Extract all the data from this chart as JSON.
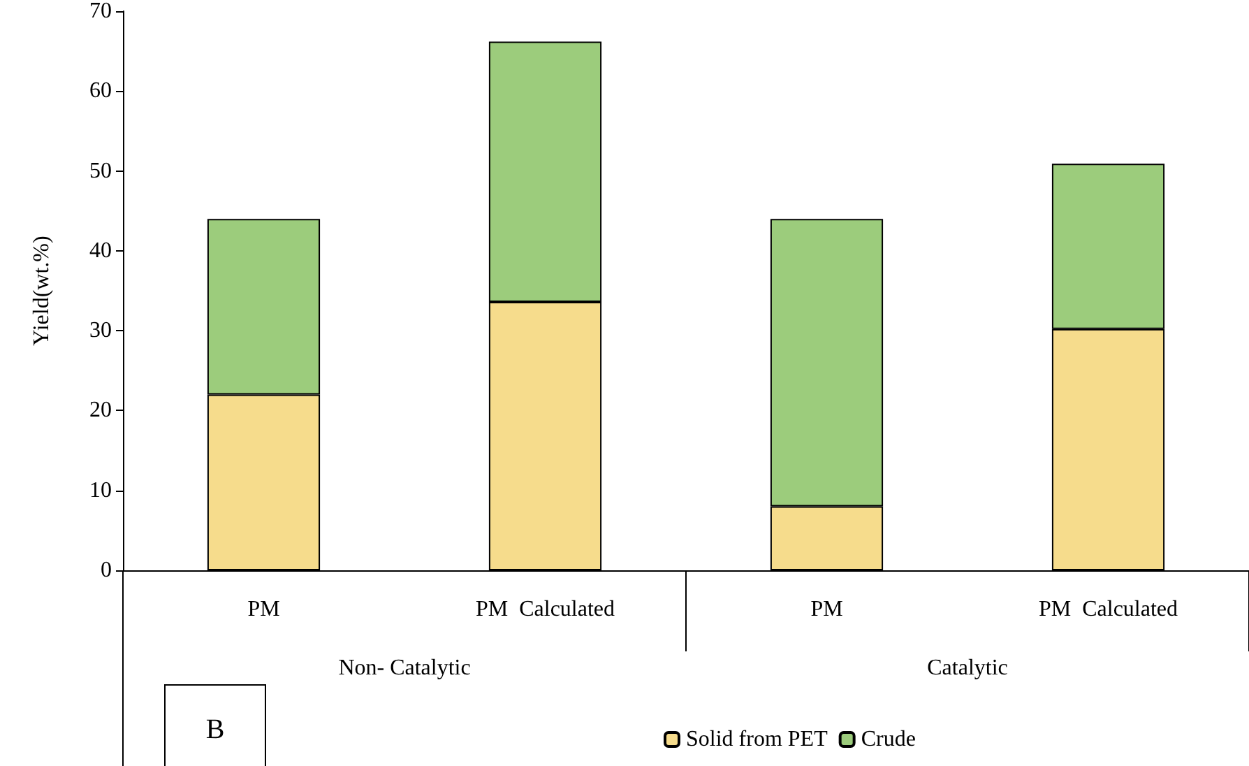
{
  "chart_data": {
    "type": "bar",
    "stacked": true,
    "ylabel": "Yield(wt.%)",
    "categories": [
      "PM",
      "PM  Calculated",
      "PM",
      "PM  Calculated"
    ],
    "series": [
      {
        "name": "Solid from PET",
        "color": "#f6dc8c",
        "values": [
          22,
          33.6,
          8,
          30.2
        ]
      },
      {
        "name": "Crude",
        "color": "#9ccc7c",
        "values": [
          22,
          32.6,
          36,
          20.7
        ]
      }
    ],
    "ylim": [
      0,
      70
    ],
    "yticks": [
      0,
      10,
      20,
      30,
      40,
      50,
      60,
      70
    ],
    "grid": false,
    "legend": "bottom",
    "annotations": [
      "Non- Catalytic",
      "Catalytic",
      "B"
    ]
  }
}
